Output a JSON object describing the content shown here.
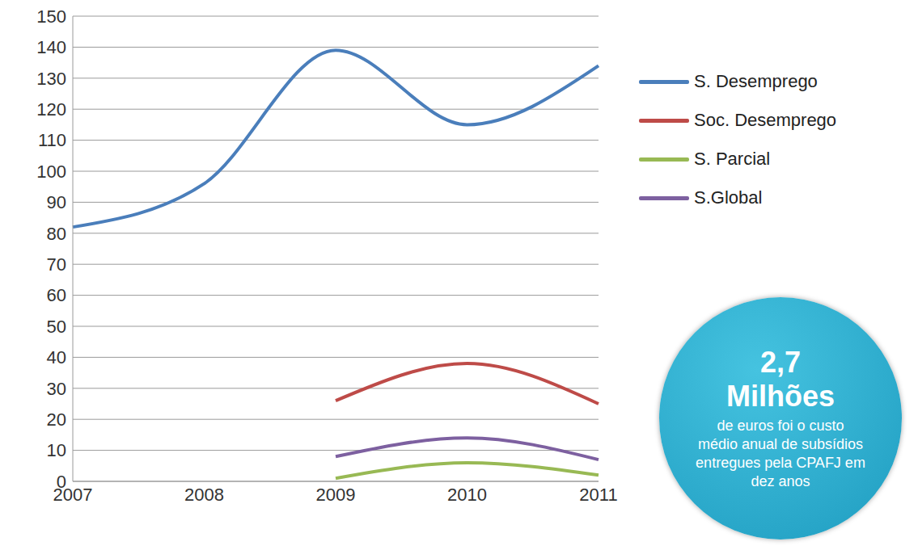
{
  "chart_data": {
    "type": "line",
    "categories": [
      "2007",
      "2008",
      "2009",
      "2010",
      "2011"
    ],
    "series": [
      {
        "name": "S. Desemprego",
        "color": "#4a7ebb",
        "values": [
          82,
          96,
          139,
          115,
          134
        ]
      },
      {
        "name": "Soc. Desemprego",
        "color": "#be4b48",
        "values": [
          null,
          null,
          26,
          38,
          25
        ]
      },
      {
        "name": "S. Parcial",
        "color": "#98b954",
        "values": [
          null,
          null,
          1,
          6,
          2
        ]
      },
      {
        "name": "S.Global",
        "color": "#7d60a0",
        "values": [
          null,
          null,
          8,
          14,
          7
        ]
      }
    ],
    "ylim": [
      0,
      150
    ],
    "yticks": [
      0,
      10,
      20,
      30,
      40,
      50,
      60,
      70,
      80,
      90,
      100,
      110,
      120,
      130,
      140,
      150
    ],
    "grid": true,
    "legend": "right",
    "line_style": "solid",
    "marker": "none",
    "annotation": {
      "headline": "2,7",
      "subhead": "Milhões",
      "text": "de euros foi o custo médio anual de subsídios entregues pela CPAFJ em dez anos"
    }
  }
}
